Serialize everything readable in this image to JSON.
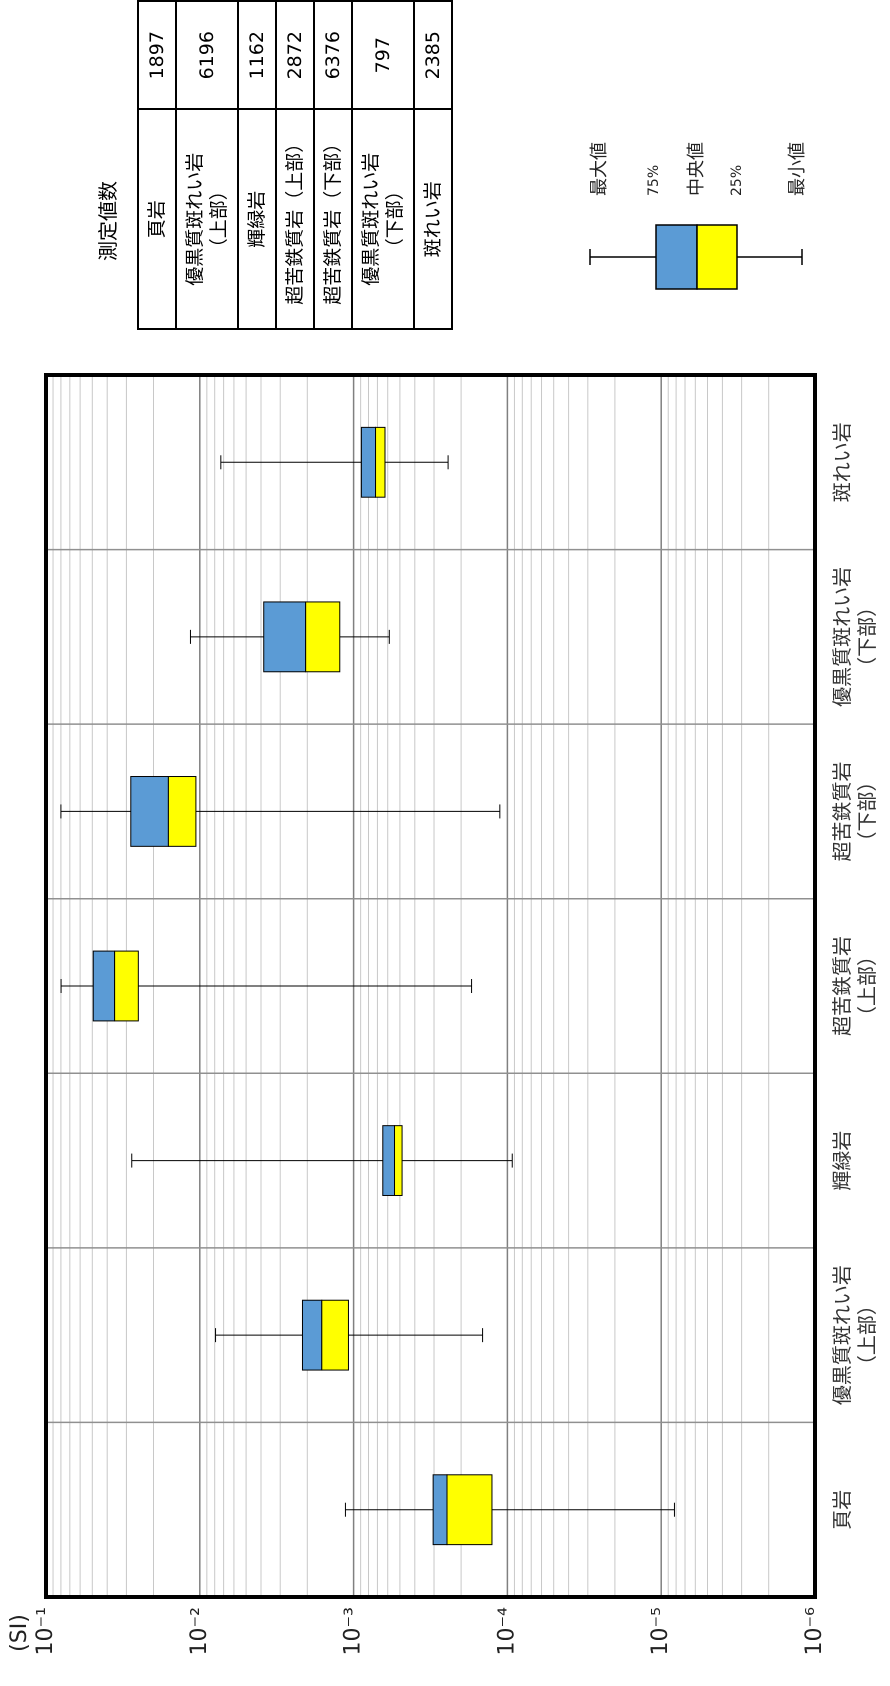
{
  "chart_data": {
    "type": "boxplot",
    "y_label": "(SI)",
    "categories": [
      "頁岩",
      "優黒質斑れい岩\n（上部）",
      "輝緑岩",
      "超苦鉄質岩\n（上部）",
      "超苦鉄質岩\n（下部）",
      "優黒質斑れい岩\n（下部）",
      "斑れい岩"
    ],
    "max": [
      0.00113,
      0.0079,
      0.0277,
      0.0798,
      0.08,
      0.0115,
      0.0073
    ],
    "q3": [
      0.000304,
      0.00215,
      0.000646,
      0.0493,
      0.0281,
      0.00384,
      0.00089
    ],
    "median": [
      0.000247,
      0.00161,
      0.000542,
      0.0358,
      0.016,
      0.00205,
      0.00072
    ],
    "q1": [
      0.000126,
      0.00108,
      0.000484,
      0.0251,
      0.0106,
      0.00123,
      0.000625
    ],
    "min": [
      8.2e-06,
      0.000145,
      9.3e-05,
      0.000171,
      0.000112,
      0.000586,
      0.000243
    ],
    "box_colors": [
      "#5b9bd5",
      "#ffff00"
    ],
    "ylim": [
      1e-06,
      0.1
    ],
    "yticks": [
      {
        "value": 0.1,
        "label": "10⁻¹"
      },
      {
        "value": 0.01,
        "label": "10⁻²"
      },
      {
        "value": 0.001,
        "label": "10⁻³"
      },
      {
        "value": 0.0001,
        "label": "10⁻⁴"
      },
      {
        "value": 1e-05,
        "label": "10⁻⁵"
      },
      {
        "value": 1e-06,
        "label": "10⁻⁶"
      }
    ],
    "log_scale": true,
    "grid": true,
    "minor_grid": true,
    "legend_labels": {
      "max": "最大値",
      "q3": "75%",
      "median": "中央値",
      "q1": "25%",
      "min": "最小値"
    }
  },
  "count_table": {
    "title": "測定値数",
    "rows": [
      [
        "頁岩",
        1897
      ],
      [
        "優黒質斑れい岩\n（上部）",
        6196
      ],
      [
        "輝緑岩",
        1162
      ],
      [
        "超苦鉄質岩（上部）",
        2872
      ],
      [
        "超苦鉄質岩（下部）",
        6376
      ],
      [
        "優黒質斑れい岩\n（下部）",
        797
      ],
      [
        "斑れい岩",
        2385
      ]
    ]
  }
}
